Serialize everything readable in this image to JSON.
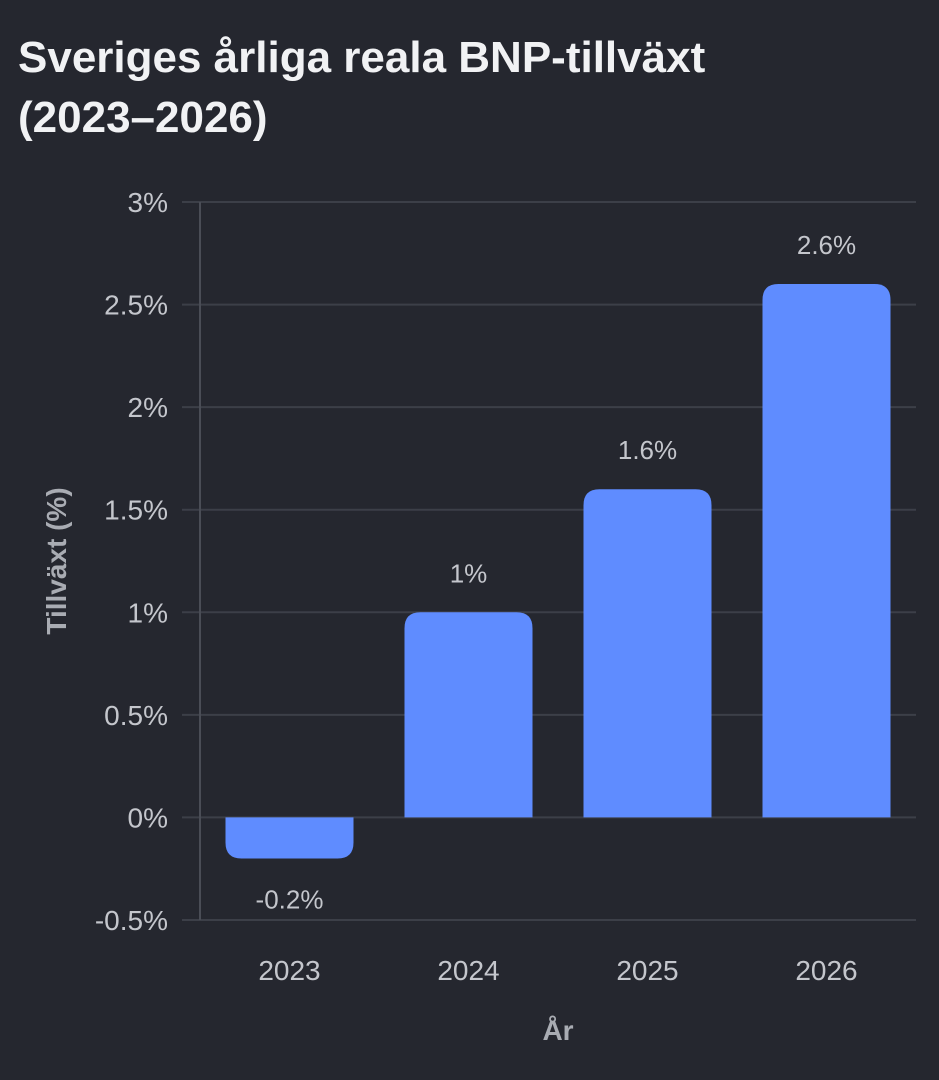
{
  "chart_data": {
    "type": "bar",
    "title_lines": [
      "Sveriges årliga reala BNP-tillväxt",
      "(2023–2026)"
    ],
    "xlabel": "År",
    "ylabel": "Tillväxt (%)",
    "categories": [
      "2023",
      "2024",
      "2025",
      "2026"
    ],
    "values": [
      -0.2,
      1,
      1.6,
      2.6
    ],
    "data_labels": [
      "-0.2%",
      "1%",
      "1.6%",
      "2.6%"
    ],
    "ylim": [
      -0.5,
      3
    ],
    "yticks": [
      -0.5,
      0,
      0.5,
      1,
      1.5,
      2,
      2.5,
      3
    ],
    "ytick_labels": [
      "-0.5%",
      "0%",
      "0.5%",
      "1%",
      "1.5%",
      "2%",
      "2.5%",
      "3%"
    ],
    "grid": true,
    "legend": "none",
    "colors": {
      "bar": "#5f8cff",
      "grid": "#3c3f48",
      "axis": "#4a4d56",
      "text": "#c4c6cc",
      "title": "#f1f2f4",
      "background": "#25272f"
    }
  }
}
